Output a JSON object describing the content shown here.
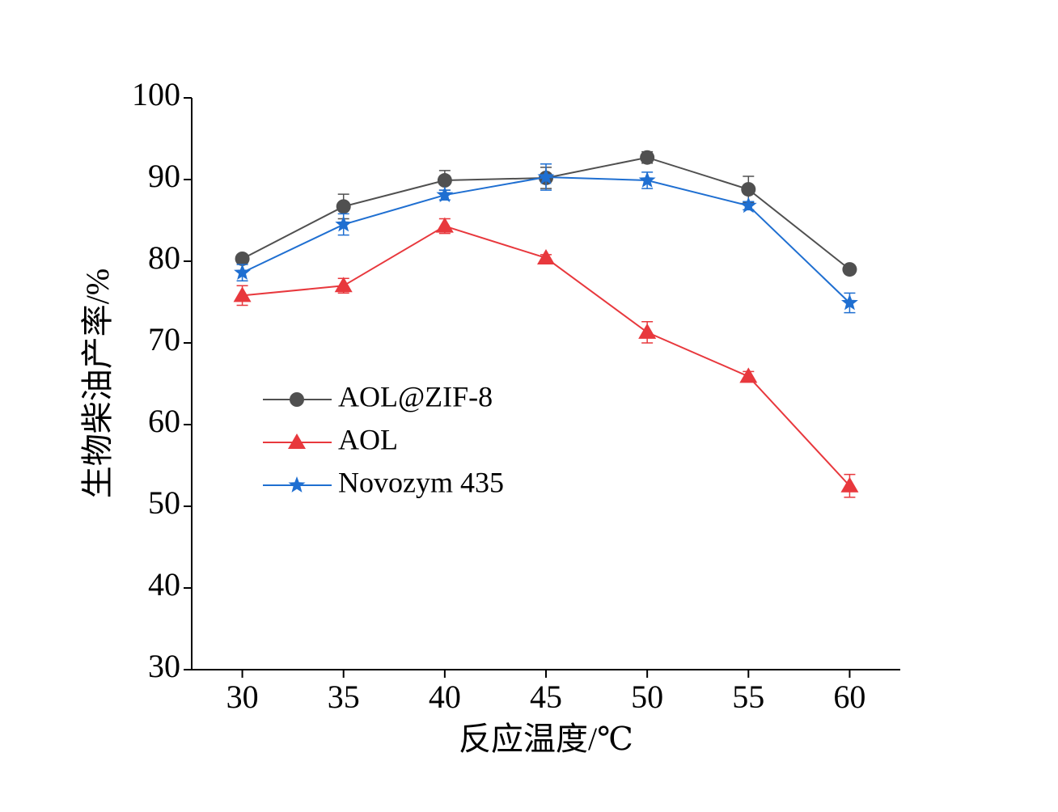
{
  "chart_data": {
    "type": "line",
    "xlabel": "反应温度/℃",
    "ylabel": "生物柴油产率/%",
    "x": [
      30,
      35,
      40,
      45,
      50,
      55,
      60
    ],
    "xlim": [
      27.5,
      62.5
    ],
    "xticks": [
      30,
      35,
      40,
      45,
      50,
      55,
      60
    ],
    "ylim": [
      30,
      100
    ],
    "yticks": [
      30,
      40,
      50,
      60,
      70,
      80,
      90,
      100
    ],
    "legend": "center-left",
    "series": [
      {
        "name": "AOL@ZIF-8",
        "color": "#505050",
        "marker": "circle",
        "values": [
          80.3,
          86.7,
          89.9,
          90.2,
          92.7,
          88.8,
          79.0
        ],
        "errors": [
          0.5,
          1.5,
          1.2,
          1.3,
          0.7,
          1.6,
          0.5
        ]
      },
      {
        "name": "AOL",
        "color": "#e8383d",
        "marker": "triangle",
        "values": [
          75.8,
          77.0,
          84.3,
          80.4,
          71.3,
          65.9,
          52.5
        ],
        "errors": [
          1.2,
          0.9,
          0.9,
          0.4,
          1.3,
          0.6,
          1.4
        ]
      },
      {
        "name": "Novozym 435",
        "color": "#1f6fd1",
        "marker": "star",
        "values": [
          78.6,
          84.5,
          88.1,
          90.3,
          89.9,
          86.8,
          74.9
        ],
        "errors": [
          1.0,
          1.3,
          0.6,
          1.6,
          1.0,
          0.5,
          1.2
        ]
      }
    ]
  }
}
